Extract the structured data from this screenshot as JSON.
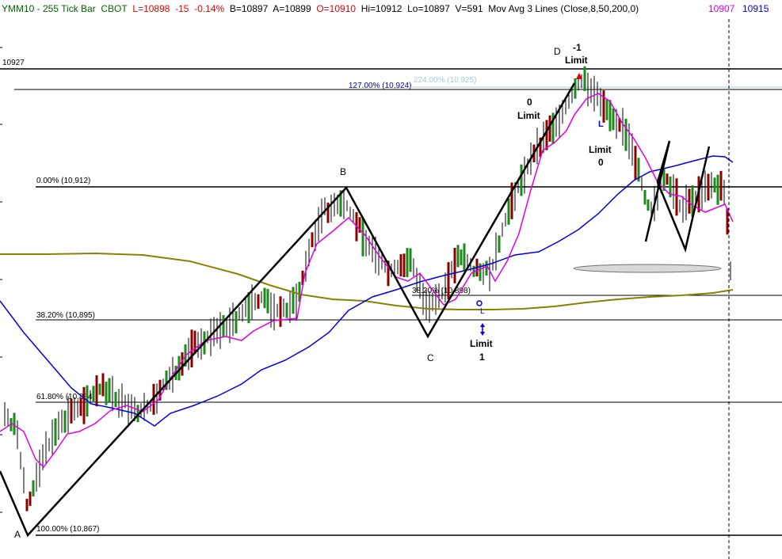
{
  "header": {
    "symbol": "YMM10 - 255 Tick Bar",
    "exchange": "CBOT",
    "last": "L=10898",
    "change": "-15",
    "change_pct": "-0.14%",
    "bid": "B=10897",
    "ask": "A=10899",
    "open": "O=10910",
    "high": "Hi=10912",
    "low": "Lo=10897",
    "volume": "V=591",
    "study": "Mov Avg 3 Lines (Close,8,50,200,0)",
    "ma_fast_value": "10907",
    "ma_mid_value": "10915"
  },
  "colors": {
    "up_bar": "#1a8a1a",
    "down_bar": "#8b0000",
    "neutral_bar": "#000000",
    "ma8": "#e000e0",
    "ma50": "#0000e0",
    "ma200": "#8b8000",
    "header_red": "#e00000",
    "header_magenta": "#e000e0",
    "header_blue": "#0000e0",
    "header_green": "#006400"
  },
  "chart_data": {
    "type": "ohlc",
    "price_axis_label": "10927",
    "levels": [
      {
        "name": "fib-127-ext",
        "label": "127.00% (10,924)",
        "value": 10924
      },
      {
        "name": "fib-ghost",
        "label": "224.00% (10,925)",
        "value": 10925
      },
      {
        "name": "fib-0",
        "label": "0.00% (10,912)",
        "value": 10912
      },
      {
        "name": "fib-382-retr",
        "label": "38.20% (10,898)",
        "value": 10898
      },
      {
        "name": "fib-382",
        "label": "38.20% (10,895)",
        "value": 10895
      },
      {
        "name": "fib-618",
        "label": "61.80% (10,884)",
        "value": 10884
      },
      {
        "name": "fib-100",
        "label": "100.00% (10,867)",
        "value": 10867
      },
      {
        "name": "top-line",
        "label": "",
        "value": 10927
      }
    ],
    "pattern_points": [
      {
        "label": "A",
        "value": 10867
      },
      {
        "label": "B",
        "value": 10912
      },
      {
        "label": "C",
        "value": 10891
      },
      {
        "label": "D",
        "value": 10926
      }
    ],
    "annotations": [
      {
        "name": "limit-minus1",
        "line1": "-1",
        "line2": "Limit"
      },
      {
        "name": "limit-0-upper",
        "line1": "0",
        "line2": "Limit"
      },
      {
        "name": "limit-0-lower",
        "line1": "Limit",
        "line2": "0"
      },
      {
        "name": "limit-1",
        "line1": "Limit",
        "line2": "1"
      }
    ],
    "last_price_marker": 10898
  }
}
